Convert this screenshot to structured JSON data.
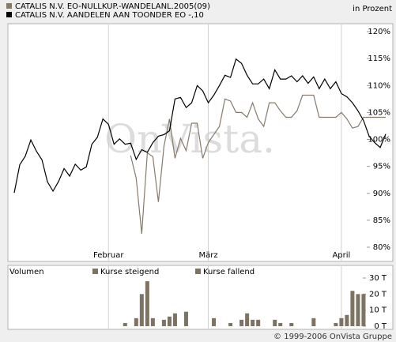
{
  "chart_data": [
    {
      "type": "line",
      "y_label": "in Prozent",
      "watermark": "OnVista.",
      "categories": [
        null,
        null,
        null,
        null,
        null,
        null,
        null,
        null,
        null,
        null,
        null,
        null,
        null,
        null,
        null,
        null,
        null,
        "Februar",
        null,
        null,
        null,
        null,
        null,
        null,
        null,
        null,
        null,
        null,
        null,
        null,
        null,
        null,
        null,
        null,
        null,
        "März",
        null,
        null,
        null,
        null,
        null,
        null,
        null,
        null,
        null,
        null,
        null,
        null,
        null,
        null,
        null,
        null,
        null,
        null,
        null,
        null,
        null,
        null,
        null,
        "April",
        null,
        null,
        null,
        null,
        null,
        null,
        null,
        null
      ],
      "series": [
        {
          "name": "CATALIS N.V. EO-NULLKUP.-WANDELANL.2005(09)",
          "color": "#857b6c",
          "values": [
            null,
            null,
            null,
            null,
            null,
            null,
            null,
            null,
            null,
            null,
            null,
            null,
            null,
            null,
            null,
            null,
            null,
            null,
            null,
            null,
            null,
            97,
            92.8,
            82.5,
            97.5,
            96.8,
            88.4,
            98.7,
            103.8,
            96.5,
            100.2,
            97.9,
            103,
            103,
            96.5,
            99.4,
            100.9,
            102.4,
            107.5,
            107.1,
            105,
            105,
            104.1,
            106.8,
            103.8,
            102.4,
            106.8,
            106.8,
            105.3,
            104.1,
            104.1,
            105.3,
            108.2,
            108.2,
            108.2,
            104.1,
            104.1,
            104.1,
            104.1,
            105,
            103.8,
            102.1,
            102.4,
            104.1,
            104.1,
            104.1,
            104.1,
            104.1
          ]
        },
        {
          "name": "CATALIS N.V. AANDELEN AAN TOONDER EO -,10",
          "color": "#000000",
          "values": [
            90.1,
            95.3,
            96.9,
            99.9,
            97.8,
            96.2,
            92.1,
            90.4,
            92.2,
            94.6,
            93.2,
            95.4,
            94.3,
            94.9,
            99.1,
            100.4,
            103.8,
            102.8,
            99.1,
            100.1,
            99.1,
            99.3,
            96.3,
            98.1,
            97.6,
            99.4,
            100.6,
            100.9,
            101.6,
            107.5,
            107.8,
            105.9,
            106.8,
            110,
            109,
            106.8,
            108.2,
            110,
            111.9,
            111.5,
            114.9,
            114.1,
            111.9,
            110.3,
            110.3,
            111.2,
            109.4,
            112.9,
            111.2,
            111.2,
            111.8,
            110.7,
            111.8,
            110.4,
            111.6,
            109.4,
            111.2,
            109.4,
            110.7,
            108.5,
            107.9,
            106.8,
            105.3,
            103.5,
            100.6,
            99.4,
            98.5,
            101
          ]
        }
      ],
      "ylim": [
        80,
        120
      ],
      "yticks": [
        {
          "value": 80,
          "label": "80%"
        },
        {
          "value": 85,
          "label": "85%"
        },
        {
          "value": 90,
          "label": "90%"
        },
        {
          "value": 95,
          "label": "95%"
        },
        {
          "value": 100,
          "label": "100%"
        },
        {
          "value": 105,
          "label": "105%"
        },
        {
          "value": 110,
          "label": "110%"
        },
        {
          "value": 115,
          "label": "115%"
        },
        {
          "value": 120,
          "label": "120%"
        }
      ],
      "grid": "x"
    },
    {
      "type": "bar",
      "title": "Volumen",
      "categories": [
        null,
        null,
        null,
        null,
        null,
        null,
        null,
        null,
        null,
        null,
        null,
        null,
        null,
        null,
        null,
        null,
        null,
        "Februar",
        null,
        null,
        null,
        null,
        null,
        null,
        null,
        null,
        null,
        null,
        null,
        null,
        null,
        null,
        null,
        null,
        null,
        "März",
        null,
        null,
        null,
        null,
        null,
        null,
        null,
        null,
        null,
        null,
        null,
        null,
        null,
        null,
        null,
        null,
        null,
        null,
        null,
        null,
        null,
        null,
        null,
        "April",
        null,
        null,
        null,
        null,
        null,
        null,
        null,
        null
      ],
      "series": [
        {
          "name": "Kurse steigend",
          "color": "#7d7363",
          "values": [
            null,
            null,
            null,
            null,
            null,
            null,
            null,
            null,
            null,
            null,
            null,
            null,
            null,
            null,
            null,
            null,
            null,
            null,
            null,
            null,
            2,
            null,
            null,
            20,
            28,
            null,
            null,
            null,
            6,
            8,
            null,
            null,
            null,
            null,
            null,
            null,
            5,
            null,
            null,
            null,
            null,
            4,
            null,
            null,
            4,
            null,
            null,
            null,
            null,
            null,
            2,
            null,
            null,
            null,
            5,
            null,
            null,
            null,
            null,
            null,
            7,
            null,
            20,
            null,
            null,
            null,
            null,
            null
          ]
        },
        {
          "name": "Kurse fallend",
          "color": "#7d7363",
          "values": [
            null,
            null,
            null,
            null,
            null,
            null,
            null,
            null,
            null,
            null,
            null,
            null,
            null,
            null,
            null,
            null,
            null,
            null,
            null,
            null,
            null,
            null,
            5,
            null,
            null,
            5,
            null,
            4,
            null,
            null,
            null,
            9,
            null,
            null,
            null,
            null,
            null,
            null,
            null,
            2,
            null,
            null,
            8,
            4,
            null,
            null,
            null,
            4,
            2,
            null,
            null,
            null,
            null,
            null,
            null,
            null,
            null,
            null,
            2,
            5,
            null,
            22,
            null,
            20,
            null,
            null,
            null,
            null
          ]
        }
      ],
      "ylim": [
        0,
        30
      ],
      "yticks": [
        {
          "value": 0,
          "label": "0 T"
        },
        {
          "value": 10,
          "label": "10 T"
        },
        {
          "value": 20,
          "label": "20 T"
        },
        {
          "value": 30,
          "label": "30 T"
        }
      ],
      "grid": "x"
    }
  ],
  "credit": "© 1999-2006 OnVista Gruppe"
}
